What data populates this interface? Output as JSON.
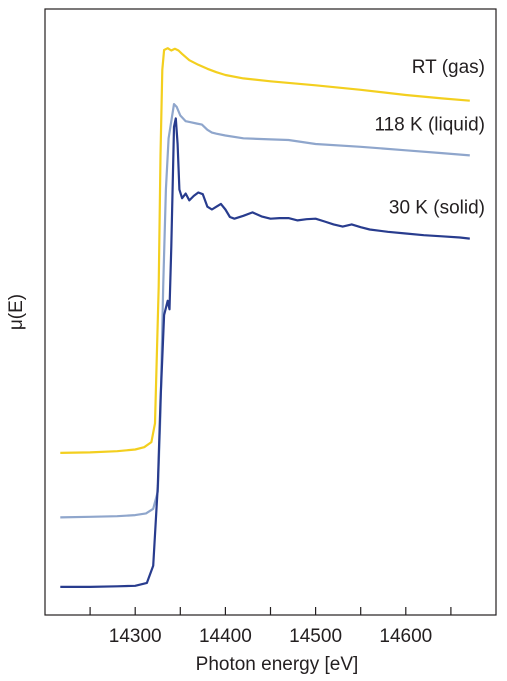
{
  "chart_data": {
    "type": "line",
    "title": "",
    "xlabel": "Photon energy [eV]",
    "ylabel": "μ(E)",
    "xlim": [
      14200,
      14700
    ],
    "ylim": [
      0,
      1
    ],
    "x_ticks": [
      14250,
      14300,
      14350,
      14400,
      14450,
      14500,
      14550,
      14600,
      14650
    ],
    "x_tick_labels": [
      {
        "value": 14300,
        "label": "14300"
      },
      {
        "value": 14400,
        "label": "14400"
      },
      {
        "value": 14500,
        "label": "14500"
      },
      {
        "value": 14600,
        "label": "14600"
      }
    ],
    "yticks_shown": false,
    "grid": false,
    "legend": "none (labels next to curves)",
    "series": [
      {
        "name": "RT (gas)",
        "color": "#f3cf1f",
        "points": [
          [
            14217,
            0.258
          ],
          [
            14250,
            0.259
          ],
          [
            14280,
            0.261
          ],
          [
            14300,
            0.264
          ],
          [
            14310,
            0.268
          ],
          [
            14318,
            0.277
          ],
          [
            14322,
            0.31
          ],
          [
            14326,
            0.55
          ],
          [
            14328,
            0.78
          ],
          [
            14330,
            0.93
          ],
          [
            14332,
            0.965
          ],
          [
            14336,
            0.968
          ],
          [
            14340,
            0.964
          ],
          [
            14344,
            0.967
          ],
          [
            14348,
            0.964
          ],
          [
            14352,
            0.958
          ],
          [
            14360,
            0.947
          ],
          [
            14370,
            0.939
          ],
          [
            14380,
            0.932
          ],
          [
            14390,
            0.926
          ],
          [
            14400,
            0.921
          ],
          [
            14420,
            0.915
          ],
          [
            14450,
            0.91
          ],
          [
            14500,
            0.903
          ],
          [
            14550,
            0.895
          ],
          [
            14600,
            0.886
          ],
          [
            14640,
            0.88
          ],
          [
            14671,
            0.876
          ]
        ]
      },
      {
        "name": "118 K (liquid)",
        "color": "#8fa6cc",
        "points": [
          [
            14217,
            0.145
          ],
          [
            14250,
            0.146
          ],
          [
            14280,
            0.147
          ],
          [
            14300,
            0.149
          ],
          [
            14312,
            0.152
          ],
          [
            14320,
            0.16
          ],
          [
            14325,
            0.19
          ],
          [
            14328,
            0.33
          ],
          [
            14331,
            0.55
          ],
          [
            14334,
            0.72
          ],
          [
            14337,
            0.81
          ],
          [
            14340,
            0.84
          ],
          [
            14343,
            0.87
          ],
          [
            14346,
            0.865
          ],
          [
            14350,
            0.85
          ],
          [
            14356,
            0.84
          ],
          [
            14362,
            0.838
          ],
          [
            14368,
            0.836
          ],
          [
            14374,
            0.834
          ],
          [
            14380,
            0.825
          ],
          [
            14385,
            0.82
          ],
          [
            14390,
            0.818
          ],
          [
            14400,
            0.815
          ],
          [
            14420,
            0.81
          ],
          [
            14450,
            0.808
          ],
          [
            14470,
            0.807
          ],
          [
            14500,
            0.8
          ],
          [
            14550,
            0.795
          ],
          [
            14600,
            0.789
          ],
          [
            14640,
            0.784
          ],
          [
            14671,
            0.78
          ]
        ]
      },
      {
        "name": "30 K (solid)",
        "color": "#283c8e",
        "points": [
          [
            14217,
            0.023
          ],
          [
            14250,
            0.023
          ],
          [
            14280,
            0.024
          ],
          [
            14300,
            0.025
          ],
          [
            14313,
            0.03
          ],
          [
            14320,
            0.06
          ],
          [
            14325,
            0.2
          ],
          [
            14328,
            0.35
          ],
          [
            14332,
            0.5
          ],
          [
            14336,
            0.525
          ],
          [
            14338,
            0.51
          ],
          [
            14340,
            0.62
          ],
          [
            14343,
            0.83
          ],
          [
            14345,
            0.845
          ],
          [
            14347,
            0.8
          ],
          [
            14349,
            0.72
          ],
          [
            14352,
            0.705
          ],
          [
            14356,
            0.713
          ],
          [
            14360,
            0.701
          ],
          [
            14365,
            0.709
          ],
          [
            14370,
            0.715
          ],
          [
            14375,
            0.712
          ],
          [
            14380,
            0.69
          ],
          [
            14385,
            0.685
          ],
          [
            14390,
            0.69
          ],
          [
            14395,
            0.695
          ],
          [
            14400,
            0.685
          ],
          [
            14405,
            0.672
          ],
          [
            14410,
            0.669
          ],
          [
            14420,
            0.674
          ],
          [
            14430,
            0.68
          ],
          [
            14440,
            0.673
          ],
          [
            14450,
            0.669
          ],
          [
            14460,
            0.67
          ],
          [
            14470,
            0.67
          ],
          [
            14480,
            0.666
          ],
          [
            14490,
            0.668
          ],
          [
            14500,
            0.669
          ],
          [
            14510,
            0.664
          ],
          [
            14520,
            0.659
          ],
          [
            14530,
            0.655
          ],
          [
            14540,
            0.659
          ],
          [
            14550,
            0.654
          ],
          [
            14560,
            0.65
          ],
          [
            14580,
            0.646
          ],
          [
            14600,
            0.643
          ],
          [
            14620,
            0.64
          ],
          [
            14640,
            0.638
          ],
          [
            14660,
            0.636
          ],
          [
            14671,
            0.634
          ]
        ]
      }
    ]
  }
}
